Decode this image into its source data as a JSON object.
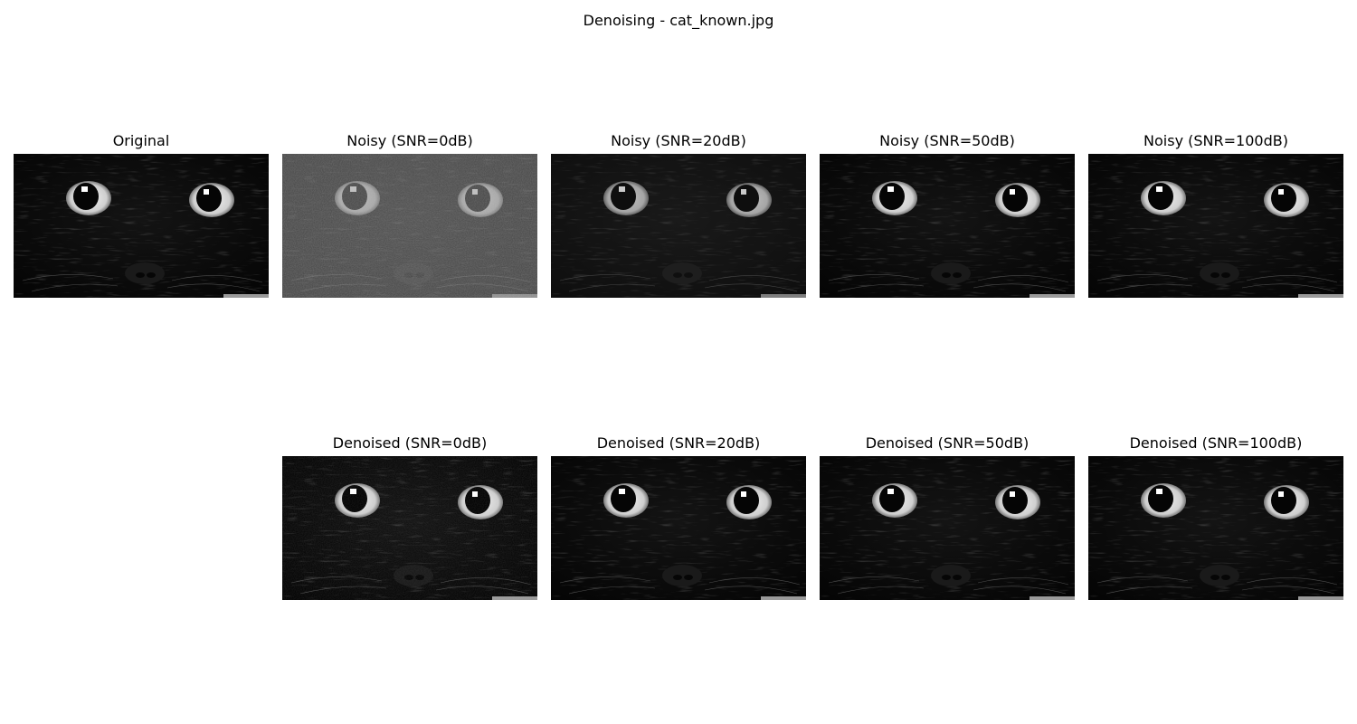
{
  "figure": {
    "title": "Denoising - cat_known.jpg"
  },
  "top_row": [
    {
      "title": "Original",
      "image": "original-cat-image",
      "tint": "original"
    },
    {
      "title": "Noisy (SNR=0dB)",
      "image": "noisy-cat-image",
      "tint": "noisy0"
    },
    {
      "title": "Noisy (SNR=20dB)",
      "image": "noisy-cat-image",
      "tint": "noisy20"
    },
    {
      "title": "Noisy (SNR=50dB)",
      "image": "noisy-cat-image",
      "tint": "clean"
    },
    {
      "title": "Noisy (SNR=100dB)",
      "image": "noisy-cat-image",
      "tint": "clean"
    }
  ],
  "bottom_row": [
    {
      "title": "Denoised (SNR=0dB)",
      "image": "denoised-cat-image",
      "tint": "denoised0"
    },
    {
      "title": "Denoised (SNR=20dB)",
      "image": "denoised-cat-image",
      "tint": "clean"
    },
    {
      "title": "Denoised (SNR=50dB)",
      "image": "denoised-cat-image",
      "tint": "clean"
    },
    {
      "title": "Denoised (SNR=100dB)",
      "image": "denoised-cat-image",
      "tint": "clean"
    }
  ]
}
